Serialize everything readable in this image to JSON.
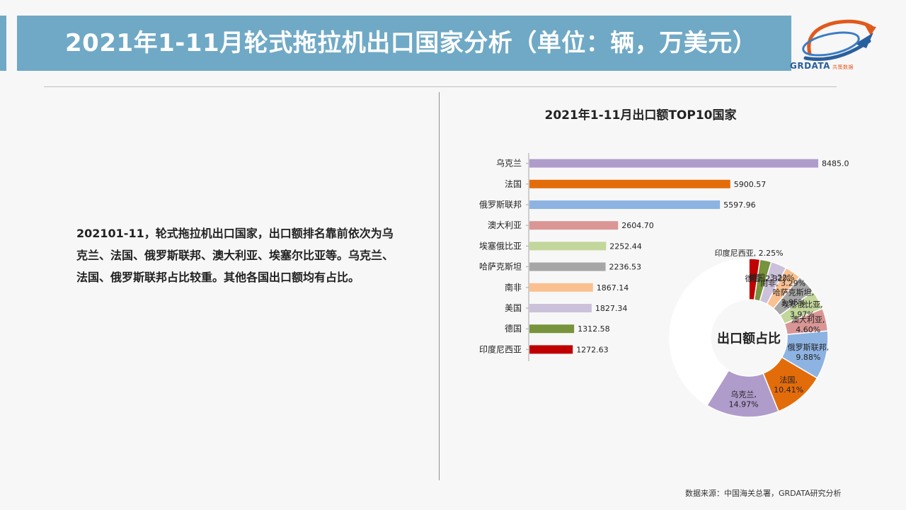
{
  "header": {
    "title": "2021年1-11月轮式拖拉机出口国家分析（单位：辆，万美元）",
    "logo_brand": "GRDATA",
    "logo_cn": "共策数据"
  },
  "summary": "202101-11，轮式拖拉机出口国家，出口额排名靠前依次为乌克兰、法国、俄罗斯联邦、澳大利亚、埃塞尔比亚等。乌克兰、法国、俄罗斯联邦占比较重。其他各国出口额均有占比。",
  "source": "数据来源：中国海关总署，GRDATA研究分析",
  "chart_data": [
    {
      "type": "bar",
      "title": "2021年1-11月出口额TOP10国家",
      "categories": [
        "乌克兰",
        "法国",
        "俄罗斯联邦",
        "澳大利亚",
        "埃塞俄比亚",
        "哈萨克斯坦",
        "南非",
        "美国",
        "德国",
        "印度尼西亚"
      ],
      "values": [
        8485.01,
        5900.57,
        5597.96,
        2604.7,
        2252.44,
        2236.53,
        1867.14,
        1827.34,
        1312.58,
        1272.63
      ],
      "value_labels": [
        "8485.01",
        "5900.57",
        "5597.96",
        "2604.70",
        "2252.44",
        "2236.53",
        "1867.14",
        "1827.34",
        "1312.58",
        "1272.63"
      ],
      "colors": [
        "#b09ccb",
        "#e36c0a",
        "#8db3e2",
        "#d99694",
        "#c3d69b",
        "#a6a6a6",
        "#fac090",
        "#ccc1da",
        "#77933c",
        "#c00000"
      ]
    },
    {
      "type": "pie",
      "title": "出口额占比",
      "donut": true,
      "labels": [
        "印度尼西亚",
        "德国",
        "美国",
        "南非",
        "哈萨克斯坦",
        "埃塞俄比亚",
        "澳大利亚",
        "俄罗斯联邦",
        "法国",
        "乌克兰"
      ],
      "values": [
        2.25,
        2.32,
        3.22,
        3.29,
        3.95,
        3.97,
        4.6,
        9.88,
        10.41,
        14.97
      ],
      "value_labels": [
        "2.25%",
        "2.32%",
        "3.22%",
        "3.29%",
        "3.95%",
        "3.97%",
        "4.60%",
        "9.88%",
        "10.41%",
        "14.97%"
      ],
      "colors": [
        "#c00000",
        "#77933c",
        "#ccc1da",
        "#fac090",
        "#a6a6a6",
        "#c3d69b",
        "#d99694",
        "#8db3e2",
        "#e36c0a",
        "#b09ccb"
      ],
      "other_color": "#ffffff"
    }
  ]
}
